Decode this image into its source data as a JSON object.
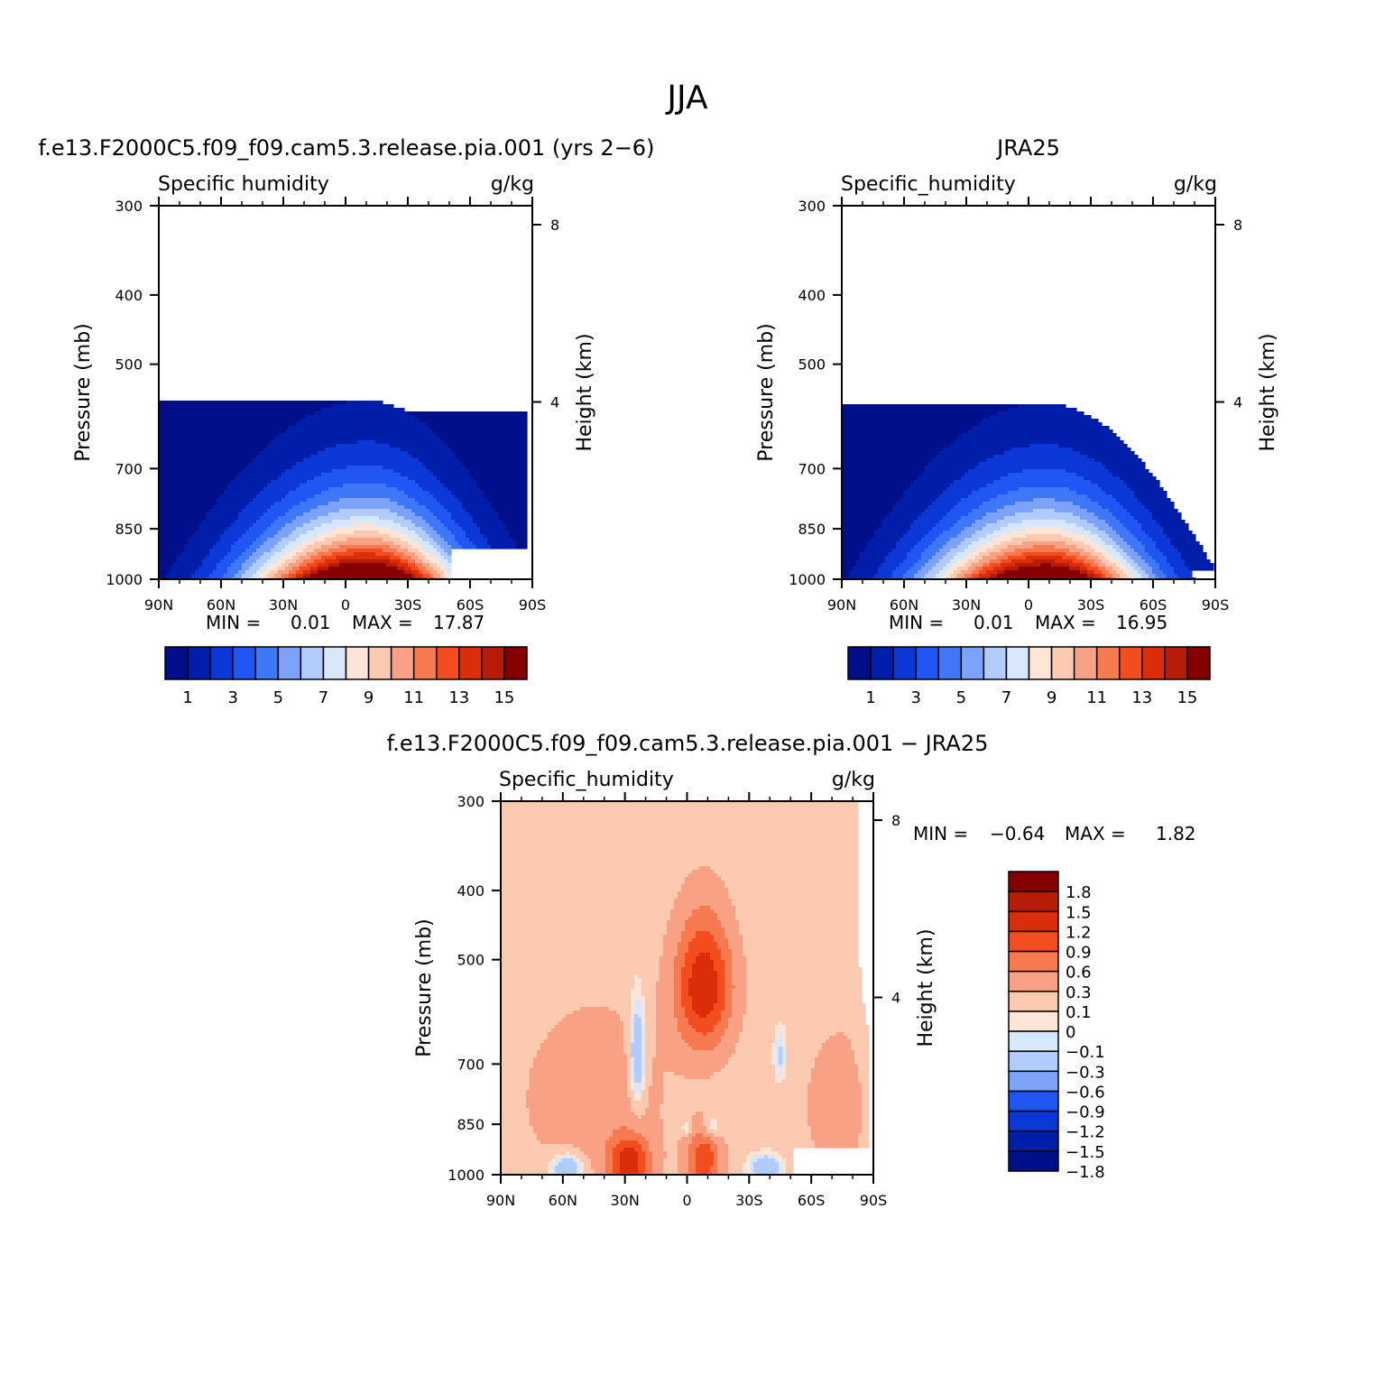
{
  "figure": {
    "title": "JJA"
  },
  "palette": {
    "seq": [
      "#000e8a",
      "#001eaa",
      "#0a37d6",
      "#1f55f3",
      "#3f78f6",
      "#7ca3f9",
      "#b1cbfb",
      "#d8e8fc",
      "#fde6d8",
      "#fbc9b0",
      "#f8a185",
      "#f7794f",
      "#f34c1e",
      "#db2d0a",
      "#b71c08",
      "#860000"
    ],
    "diff": [
      "#000e8a",
      "#001eaa",
      "#0a37d6",
      "#1f55f3",
      "#7ca3f9",
      "#b1cbfb",
      "#d8e8fc",
      "#fde6d8",
      "#fbc9b0",
      "#f8a185",
      "#f7794f",
      "#f34c1e",
      "#db2d0a",
      "#b71c08",
      "#860000"
    ]
  },
  "chart_data": [
    {
      "type": "heatmap",
      "kind": "zonal-mean contour",
      "title": "f.e13.F2000C5.f09_f09.cam5.3.release.pia.001 (yrs 2−6)",
      "left_label": "Specific humidity",
      "right_label": "g/kg",
      "ylabel": "Pressure (mb)",
      "y2label": "Height (km)",
      "x_ticks": [
        "90N",
        "60N",
        "30N",
        "0",
        "30S",
        "60S",
        "90S"
      ],
      "x_range": [
        90,
        -90
      ],
      "y_ticks": [
        "300",
        "400",
        "500",
        "700",
        "850",
        "1000"
      ],
      "y_tick_values": [
        300,
        400,
        500,
        700,
        850,
        1000
      ],
      "y_range": [
        300,
        1000
      ],
      "y_scale": "log",
      "y2_ticks": [
        "8",
        "4"
      ],
      "y2_tick_values": [
        8,
        4
      ],
      "min_label": "MIN =",
      "min_value": "0.01",
      "max_label": "MAX =",
      "max_value": "17.87",
      "colorbar_labels": [
        "1",
        "3",
        "5",
        "7",
        "9",
        "11",
        "13",
        "15"
      ],
      "peak_lat": -10,
      "peak_value": 17.87
    },
    {
      "type": "heatmap",
      "kind": "zonal-mean contour",
      "title": "JRA25",
      "left_label": "Specific_humidity",
      "right_label": "g/kg",
      "ylabel": "Pressure (mb)",
      "y2label": "Height (km)",
      "x_ticks": [
        "90N",
        "60N",
        "30N",
        "0",
        "30S",
        "60S",
        "90S"
      ],
      "x_range": [
        90,
        -90
      ],
      "y_ticks": [
        "300",
        "400",
        "500",
        "700",
        "850",
        "1000"
      ],
      "y_tick_values": [
        300,
        400,
        500,
        700,
        850,
        1000
      ],
      "y_range": [
        300,
        1000
      ],
      "y_scale": "log",
      "y2_ticks": [
        "8",
        "4"
      ],
      "y2_tick_values": [
        8,
        4
      ],
      "min_label": "MIN =",
      "min_value": "0.01",
      "max_label": "MAX =",
      "max_value": "16.95",
      "colorbar_labels": [
        "1",
        "3",
        "5",
        "7",
        "9",
        "11",
        "13",
        "15"
      ],
      "peak_lat": -8,
      "peak_value": 16.95
    },
    {
      "type": "heatmap",
      "kind": "zonal-mean difference contour",
      "title": "f.e13.F2000C5.f09_f09.cam5.3.release.pia.001 − JRA25",
      "left_label": "Specific_humidity",
      "right_label": "g/kg",
      "ylabel": "Pressure (mb)",
      "y2label": "Height (km)",
      "x_ticks": [
        "90N",
        "60N",
        "30N",
        "0",
        "30S",
        "60S",
        "90S"
      ],
      "x_range": [
        90,
        -90
      ],
      "y_ticks": [
        "300",
        "400",
        "500",
        "700",
        "850",
        "1000"
      ],
      "y_tick_values": [
        300,
        400,
        500,
        700,
        850,
        1000
      ],
      "y_range": [
        300,
        1000
      ],
      "y_scale": "log",
      "y2_ticks": [
        "8",
        "4"
      ],
      "y2_tick_values": [
        8,
        4
      ],
      "min_label": "MIN =",
      "min_value": "−0.64",
      "max_label": "MAX =",
      "max_value": "1.82",
      "colorbar_labels": [
        "1.8",
        "1.5",
        "1.2",
        "0.9",
        "0.6",
        "0.3",
        "0.1",
        "0",
        "−0.1",
        "−0.3",
        "−0.6",
        "−0.9",
        "−1.2",
        "−1.5",
        "−1.8"
      ]
    }
  ]
}
